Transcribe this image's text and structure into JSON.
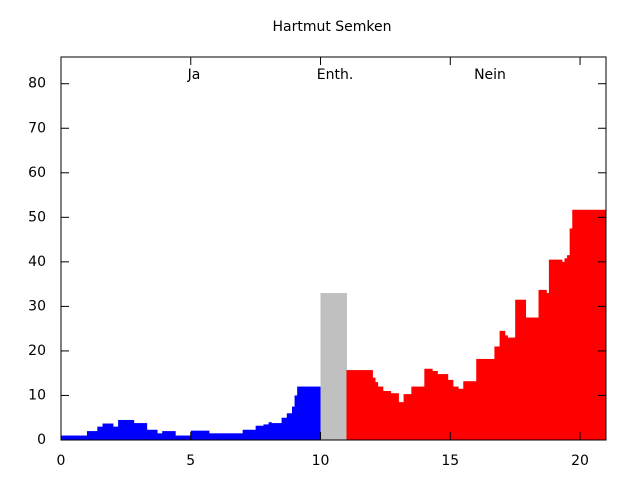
{
  "chart_data": {
    "type": "histogram",
    "title": "Hartmut Semken",
    "xlim": [
      0,
      21
    ],
    "ylim": [
      0,
      86
    ],
    "xticks": [
      0,
      5,
      10,
      15,
      20
    ],
    "yticks": [
      0,
      10,
      20,
      30,
      40,
      50,
      60,
      70,
      80
    ],
    "series": [
      {
        "name": "Ja",
        "color": "#0000ff",
        "bins": [
          0,
          1,
          1.4,
          1.6,
          2.0,
          2.2,
          2.8,
          3.3,
          3.7,
          3.9,
          4.4,
          5.0,
          5.7,
          7.0,
          7.5,
          7.8,
          8.0,
          8.1,
          8.5,
          8.7,
          8.9,
          9.0,
          9.1,
          10
        ],
        "values": [
          1,
          2,
          3,
          3.7,
          3,
          4.5,
          3.8,
          2.3,
          1.5,
          2,
          1,
          2.1,
          1.5,
          2.3,
          3.2,
          3.5,
          4,
          3.8,
          5,
          6,
          7.5,
          10,
          12
        ]
      },
      {
        "name": "Enth.",
        "color": "#c0c0c0",
        "bins": [
          10,
          11
        ],
        "values": [
          33
        ]
      },
      {
        "name": "Nein",
        "color": "#ff0000",
        "bins": [
          11,
          12,
          12.1,
          12.2,
          12.4,
          12.7,
          13.0,
          13.2,
          13.5,
          14.0,
          14.3,
          14.5,
          14.9,
          15.1,
          15.3,
          15.5,
          16.0,
          16.7,
          16.9,
          17.1,
          17.2,
          17.5,
          17.9,
          18.4,
          18.7,
          18.8,
          19.3,
          19.4,
          19.5,
          19.6,
          19.7,
          21
        ],
        "values": [
          15.7,
          14,
          13,
          12,
          11,
          10.5,
          8.5,
          10.3,
          12,
          16,
          15.5,
          14.8,
          13.5,
          12,
          11.5,
          13.2,
          18.2,
          21,
          24.5,
          23.5,
          23,
          31.5,
          27.5,
          33.7,
          33,
          40.5,
          40,
          40.8,
          41.5,
          47.5,
          51.7
        ]
      }
    ]
  }
}
